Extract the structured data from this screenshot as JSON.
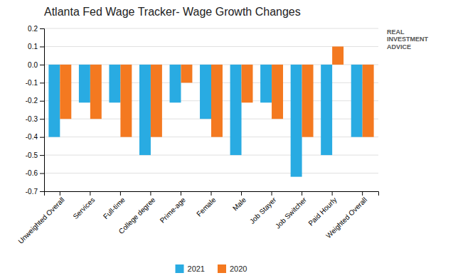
{
  "chart_data": {
    "type": "bar",
    "title": "Atlanta Fed Wage Tracker- Wage Growth Changes",
    "categories": [
      "Unweighted Overall",
      "Services",
      "Full-time",
      "College degree",
      "Prime-age",
      "Female",
      "Male",
      "Job Stayer",
      "Job Switcher",
      "Paid Hourly",
      "Weighted Overall"
    ],
    "series": [
      {
        "name": "2021",
        "color": "#29ABE2",
        "values": [
          -0.4,
          -0.21,
          -0.21,
          -0.5,
          -0.21,
          -0.3,
          -0.5,
          -0.21,
          -0.62,
          -0.5,
          -0.4
        ]
      },
      {
        "name": "2020",
        "color": "#F47920",
        "values": [
          -0.3,
          -0.3,
          -0.4,
          -0.4,
          -0.1,
          -0.4,
          -0.21,
          -0.3,
          -0.4,
          0.1,
          -0.4
        ]
      }
    ],
    "ylim": [
      -0.7,
      0.2
    ],
    "yticks": [
      -0.7,
      -0.6,
      -0.5,
      -0.4,
      -0.3,
      -0.2,
      -0.1,
      {
        "value": 0.0,
        "label": "0.0"
      },
      0.1,
      0.2
    ],
    "grid": true,
    "legend": "bottom",
    "annotations": [
      "REAL\nINVESTMENT\nADVICE"
    ]
  }
}
